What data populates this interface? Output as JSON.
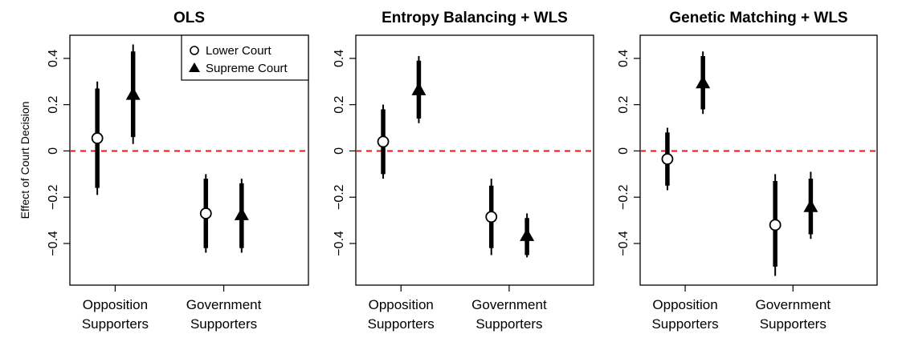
{
  "chart_data": {
    "type": "scatter",
    "ylabel": "Effect of Court Decision",
    "ylim": [
      -0.58,
      0.5
    ],
    "yticks": [
      -0.4,
      -0.2,
      0,
      0.2,
      0.4
    ],
    "ytick_labels": [
      "−0.4",
      "−0.2",
      "0",
      "0.2",
      "0.4"
    ],
    "categories": [
      [
        "Opposition",
        "Supporters"
      ],
      [
        "Government",
        "Supporters"
      ]
    ],
    "legend": {
      "placement": "top-right of first panel",
      "items": [
        {
          "label": "Lower Court",
          "marker": "circle"
        },
        {
          "label": "Supreme Court",
          "marker": "triangle"
        }
      ]
    },
    "reference_line": {
      "y": 0,
      "color": "#e31a1c",
      "style": "dashed"
    },
    "panels": [
      {
        "title": "OLS",
        "series": [
          {
            "name": "Lower Court",
            "points": [
              {
                "category": 0,
                "estimate": 0.055,
                "ci95": [
                  -0.19,
                  0.3
                ],
                "ci90": [
                  -0.16,
                  0.27
                ]
              },
              {
                "category": 1,
                "estimate": -0.27,
                "ci95": [
                  -0.44,
                  -0.1
                ],
                "ci90": [
                  -0.42,
                  -0.12
                ]
              }
            ]
          },
          {
            "name": "Supreme Court",
            "points": [
              {
                "category": 0,
                "estimate": 0.245,
                "ci95": [
                  0.03,
                  0.46
                ],
                "ci90": [
                  0.06,
                  0.43
                ]
              },
              {
                "category": 1,
                "estimate": -0.275,
                "ci95": [
                  -0.44,
                  -0.12
                ],
                "ci90": [
                  -0.42,
                  -0.14
                ]
              }
            ]
          }
        ]
      },
      {
        "title": "Entropy Balancing + WLS",
        "series": [
          {
            "name": "Lower Court",
            "points": [
              {
                "category": 0,
                "estimate": 0.04,
                "ci95": [
                  -0.12,
                  0.2
                ],
                "ci90": [
                  -0.1,
                  0.18
                ]
              },
              {
                "category": 1,
                "estimate": -0.285,
                "ci95": [
                  -0.45,
                  -0.12
                ],
                "ci90": [
                  -0.42,
                  -0.15
                ]
              }
            ]
          },
          {
            "name": "Supreme Court",
            "points": [
              {
                "category": 0,
                "estimate": 0.265,
                "ci95": [
                  0.12,
                  0.41
                ],
                "ci90": [
                  0.14,
                  0.39
                ]
              },
              {
                "category": 1,
                "estimate": -0.365,
                "ci95": [
                  -0.46,
                  -0.27
                ],
                "ci90": [
                  -0.45,
                  -0.29
                ]
              }
            ]
          }
        ]
      },
      {
        "title": "Genetic Matching + WLS",
        "series": [
          {
            "name": "Lower Court",
            "points": [
              {
                "category": 0,
                "estimate": -0.035,
                "ci95": [
                  -0.17,
                  0.1
                ],
                "ci90": [
                  -0.15,
                  0.08
                ]
              },
              {
                "category": 1,
                "estimate": -0.32,
                "ci95": [
                  -0.54,
                  -0.1
                ],
                "ci90": [
                  -0.5,
                  -0.13
                ]
              }
            ]
          },
          {
            "name": "Supreme Court",
            "points": [
              {
                "category": 0,
                "estimate": 0.295,
                "ci95": [
                  0.16,
                  0.43
                ],
                "ci90": [
                  0.18,
                  0.41
                ]
              },
              {
                "category": 1,
                "estimate": -0.24,
                "ci95": [
                  -0.38,
                  -0.09
                ],
                "ci90": [
                  -0.36,
                  -0.12
                ]
              }
            ]
          }
        ]
      }
    ]
  }
}
